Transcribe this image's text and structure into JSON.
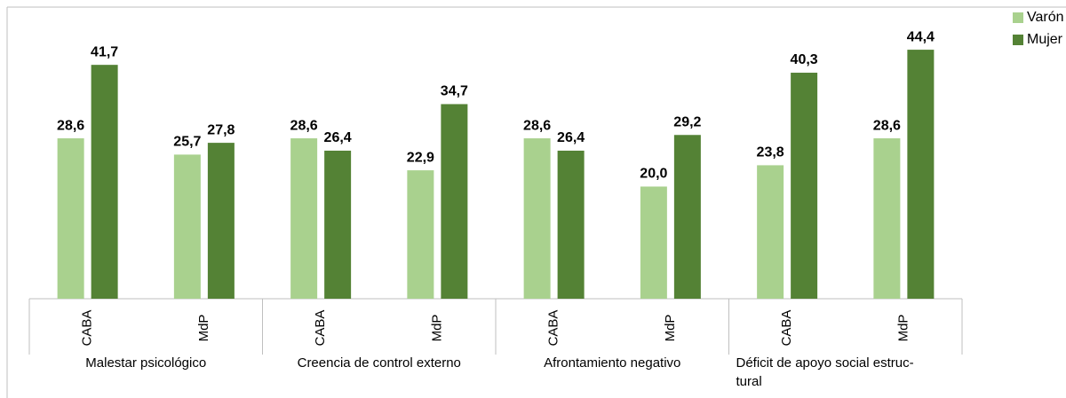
{
  "chart_data": {
    "type": "bar",
    "groups": [
      {
        "label": [
          "Malestar psicológico"
        ]
      },
      {
        "label": [
          "Creencia de control externo"
        ]
      },
      {
        "label": [
          "Afrontamiento negativo"
        ]
      },
      {
        "label": [
          "Déficit de apoyo social estruc-",
          "tural"
        ]
      }
    ],
    "categories": [
      "CABA",
      "MdP",
      "CABA",
      "MdP",
      "CABA",
      "MdP",
      "CABA",
      "MdP"
    ],
    "series": [
      {
        "name": "Varón",
        "color": "#a9d18e",
        "values": [
          28.6,
          25.7,
          28.6,
          22.9,
          28.6,
          20.0,
          23.8,
          28.6
        ],
        "value_labels": [
          "28,6",
          "25,7",
          "28,6",
          "22,9",
          "28,6",
          "20,0",
          "23,8",
          "28,6"
        ]
      },
      {
        "name": "Mujer",
        "color": "#548235",
        "values": [
          41.7,
          27.8,
          26.4,
          34.7,
          26.4,
          29.2,
          40.3,
          44.4
        ],
        "value_labels": [
          "41,7",
          "27,8",
          "26,4",
          "34,7",
          "26,4",
          "29,2",
          "40,3",
          "44,4"
        ]
      }
    ],
    "ylim": [
      0,
      52
    ],
    "legend": "top-right"
  }
}
